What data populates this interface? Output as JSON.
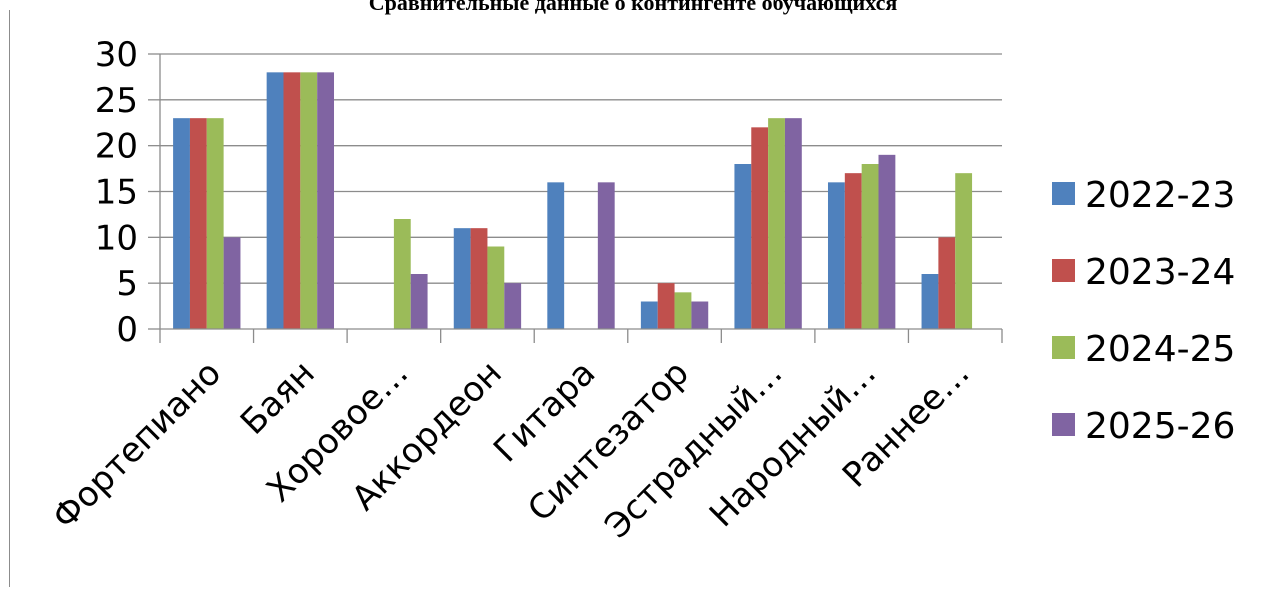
{
  "chart_data": {
    "type": "bar",
    "title": "Сравнительные данные о контингенте обучающихся",
    "xlabel": "",
    "ylabel": "",
    "ylim": [
      0,
      30
    ],
    "yticks": [
      0,
      5,
      10,
      15,
      20,
      25,
      30
    ],
    "grid": true,
    "legend_position": "right",
    "categories": [
      "Фортепиано",
      "Баян",
      "Хоровое…",
      "Аккордеон",
      "Гитара",
      "Синтезатор",
      "Эстрадный…",
      "Народный…",
      "Раннее…"
    ],
    "series": [
      {
        "name": "2022-23",
        "color": "#4f81bd",
        "values": [
          23,
          28,
          0,
          11,
          16,
          3,
          18,
          16,
          6
        ]
      },
      {
        "name": "2023-24",
        "color": "#c0504d",
        "values": [
          23,
          28,
          0,
          11,
          0,
          5,
          22,
          17,
          10
        ]
      },
      {
        "name": "2024-25",
        "color": "#9bbb59",
        "values": [
          23,
          28,
          12,
          9,
          0,
          4,
          23,
          18,
          17
        ]
      },
      {
        "name": "2025-26",
        "color": "#8064a2",
        "values": [
          10,
          28,
          6,
          5,
          16,
          3,
          23,
          19,
          0
        ]
      }
    ]
  }
}
